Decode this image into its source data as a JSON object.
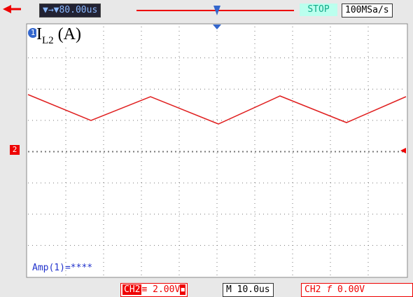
{
  "top_bar": {
    "delay": "80.00us",
    "status": "STOP",
    "sample_rate": "100MSa/s"
  },
  "channel_markers": {
    "ch1": "1",
    "ch2": "2"
  },
  "overlay_label": {
    "symbol": "I",
    "subscript": "L2",
    "unit": "(A)"
  },
  "measurement": "Amp(1)=****",
  "bottom_bar": {
    "channel": "CH2",
    "volts_per_div": "2.00V",
    "timebase_prefix": "M",
    "timebase": "10.0us",
    "trigger_source": "CH2",
    "trigger_edge": "f",
    "trigger_level": "0.00V"
  }
}
